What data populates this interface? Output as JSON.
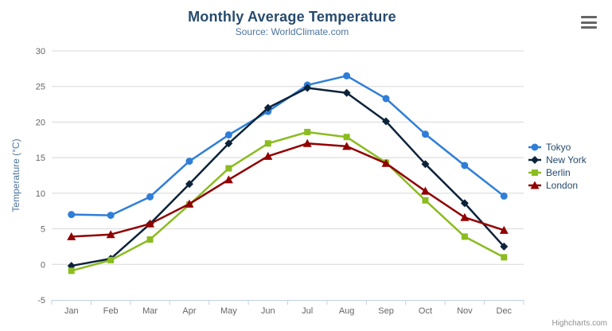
{
  "header": {
    "title": "Monthly Average Temperature",
    "subtitle": "Source: WorldClimate.com"
  },
  "credits_label": "Highcharts.com",
  "menu": {
    "icon": "hamburger-icon"
  },
  "palette": {
    "title_color": "#274b6d",
    "subtitle_color": "#4d759e",
    "axis_label_color": "#666666",
    "axis_title_color": "#4d759e",
    "axis_line_color": "#C0D0E0",
    "grid_line_color": "#D8D8D8",
    "legend_text_color": "#274b6d",
    "background": "#ffffff"
  },
  "chart_data": {
    "type": "line",
    "title": "Monthly Average Temperature",
    "subtitle": "Source: WorldClimate.com",
    "xlabel": "",
    "ylabel": "Temperature (°C)",
    "ylim": [
      -5,
      30
    ],
    "ytick_interval": 5,
    "grid": true,
    "legend_position": "right-middle",
    "categories": [
      "Jan",
      "Feb",
      "Mar",
      "Apr",
      "May",
      "Jun",
      "Jul",
      "Aug",
      "Sep",
      "Oct",
      "Nov",
      "Dec"
    ],
    "series": [
      {
        "name": "Tokyo",
        "color": "#2f7ed8",
        "marker": "circle",
        "values": [
          7.0,
          6.9,
          9.5,
          14.5,
          18.2,
          21.5,
          25.2,
          26.5,
          23.3,
          18.3,
          13.9,
          9.6
        ]
      },
      {
        "name": "New York",
        "color": "#0d233a",
        "marker": "diamond",
        "values": [
          -0.2,
          0.8,
          5.7,
          11.3,
          17.0,
          22.0,
          24.8,
          24.1,
          20.1,
          14.1,
          8.6,
          2.5
        ]
      },
      {
        "name": "Berlin",
        "color": "#8bbc21",
        "marker": "square",
        "values": [
          -0.9,
          0.6,
          3.5,
          8.4,
          13.5,
          17.0,
          18.6,
          17.9,
          14.3,
          9.0,
          3.9,
          1.0
        ]
      },
      {
        "name": "London",
        "color": "#910000",
        "marker": "triangle",
        "values": [
          3.9,
          4.2,
          5.7,
          8.5,
          11.9,
          15.2,
          17.0,
          16.6,
          14.2,
          10.3,
          6.6,
          4.8
        ]
      }
    ]
  }
}
